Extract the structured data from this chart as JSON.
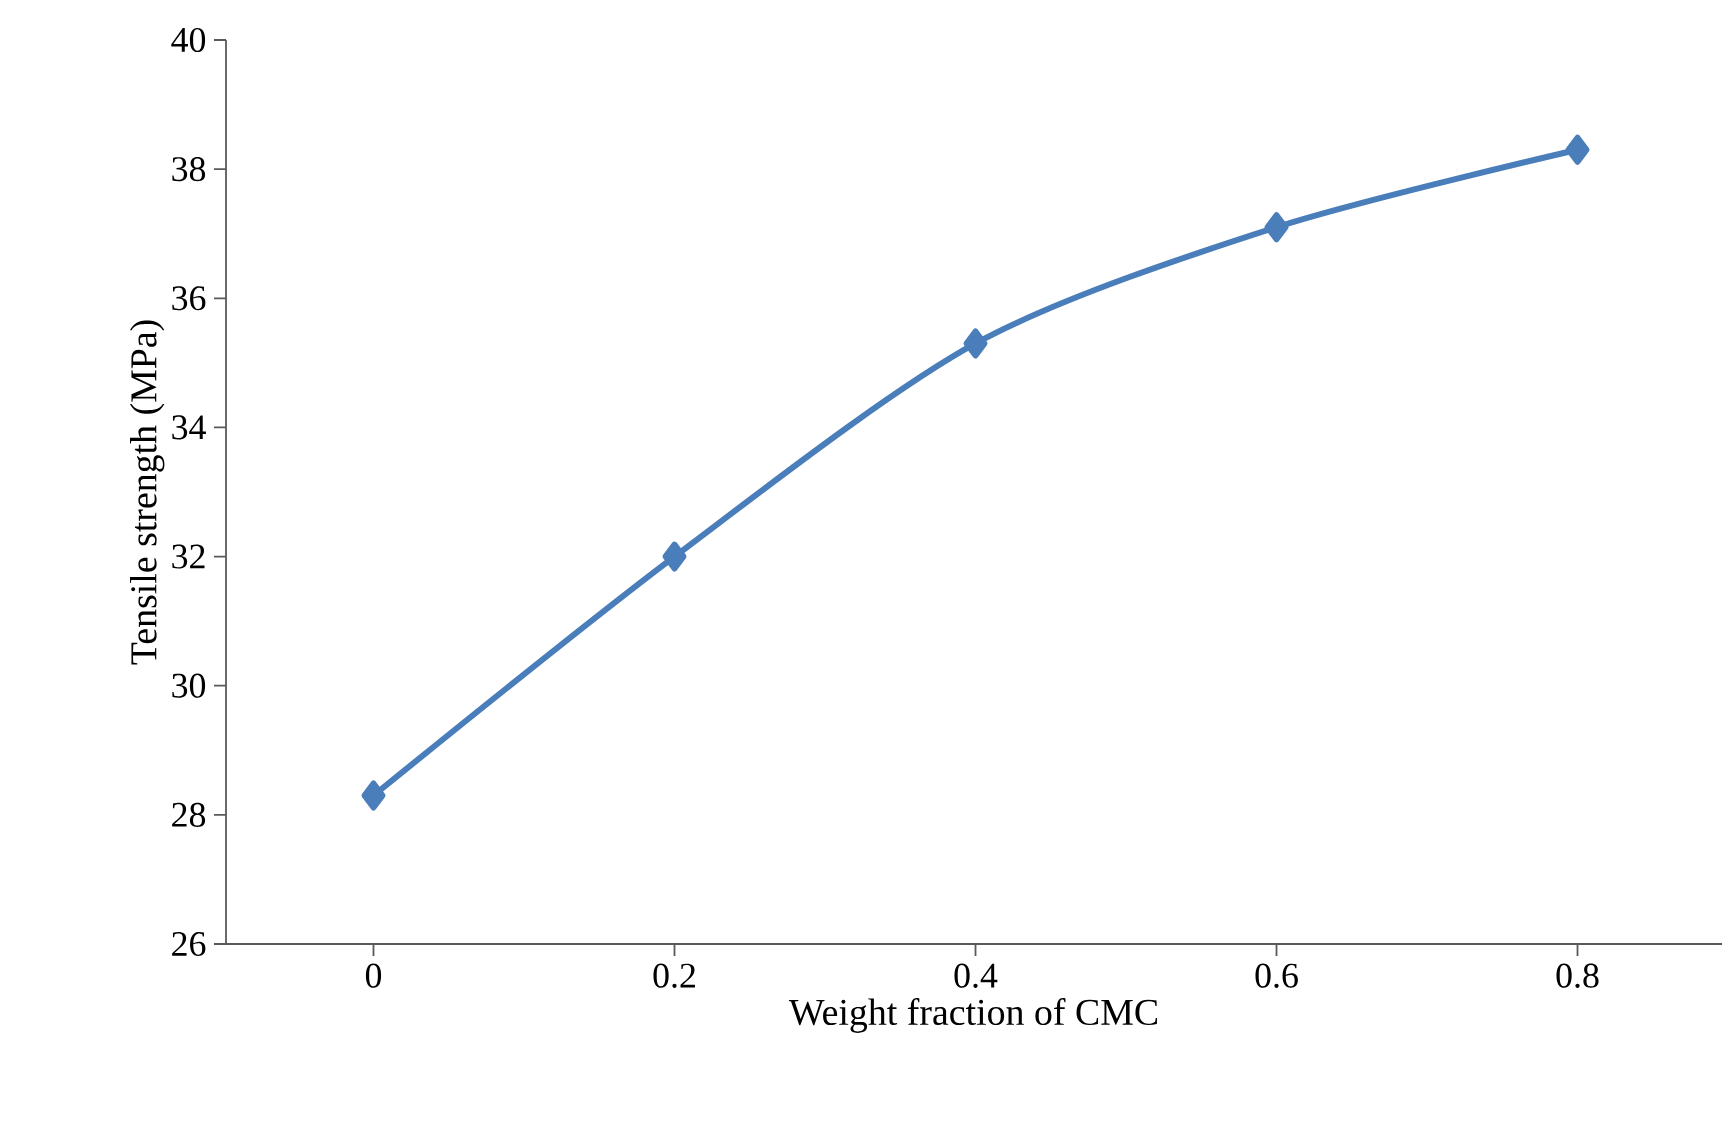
{
  "chart_data": {
    "type": "line",
    "xlabel": "Weight fraction of CMC",
    "ylabel": "Tensile strength (MPa)",
    "categories": [
      "0",
      "0.2",
      "0.4",
      "0.6",
      "0.8"
    ],
    "series": [
      {
        "color": "#4a7ebb",
        "values": [
          28.3,
          32.0,
          35.3,
          37.1,
          38.3
        ]
      }
    ],
    "ylim": [
      26,
      40
    ],
    "yticks": [
      26,
      28,
      30,
      32,
      34,
      36,
      38,
      40
    ],
    "grid": false,
    "marker": "diamond",
    "line_style": "solid"
  }
}
